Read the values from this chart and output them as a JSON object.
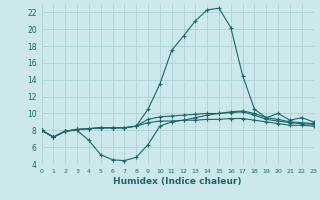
{
  "xlabel": "Humidex (Indice chaleur)",
  "bg_color": "#cce8ea",
  "grid_color": "#b0d4d8",
  "line_color": "#1a6868",
  "xlim": [
    0,
    23
  ],
  "ylim": [
    4,
    23
  ],
  "yticks": [
    4,
    6,
    8,
    10,
    12,
    14,
    16,
    18,
    20,
    22
  ],
  "xticks": [
    0,
    1,
    2,
    3,
    4,
    5,
    6,
    7,
    8,
    9,
    10,
    11,
    12,
    13,
    14,
    15,
    16,
    17,
    18,
    19,
    20,
    21,
    22,
    23
  ],
  "line1": [
    8.0,
    7.2,
    7.9,
    8.1,
    8.2,
    8.3,
    8.3,
    8.3,
    8.5,
    10.5,
    13.5,
    17.5,
    19.2,
    21.0,
    22.3,
    22.5,
    20.2,
    14.5,
    10.5,
    9.5,
    10.0,
    9.2,
    9.5,
    9.0
  ],
  "line2": [
    8.0,
    7.2,
    7.9,
    8.0,
    6.8,
    5.1,
    4.5,
    4.4,
    4.8,
    6.3,
    8.5,
    9.0,
    9.2,
    9.5,
    9.8,
    10.0,
    10.2,
    10.3,
    10.0,
    9.5,
    9.3,
    9.0,
    8.9,
    8.8
  ],
  "line3": [
    8.0,
    7.2,
    7.9,
    8.1,
    8.2,
    8.3,
    8.3,
    8.3,
    8.5,
    9.3,
    9.6,
    9.7,
    9.8,
    9.9,
    10.0,
    10.0,
    10.1,
    10.2,
    9.8,
    9.3,
    9.1,
    8.9,
    8.8,
    8.7
  ],
  "line4": [
    8.0,
    7.2,
    7.9,
    8.1,
    8.2,
    8.3,
    8.3,
    8.3,
    8.5,
    8.9,
    9.1,
    9.1,
    9.2,
    9.2,
    9.3,
    9.3,
    9.4,
    9.4,
    9.2,
    9.0,
    8.8,
    8.6,
    8.6,
    8.5
  ]
}
